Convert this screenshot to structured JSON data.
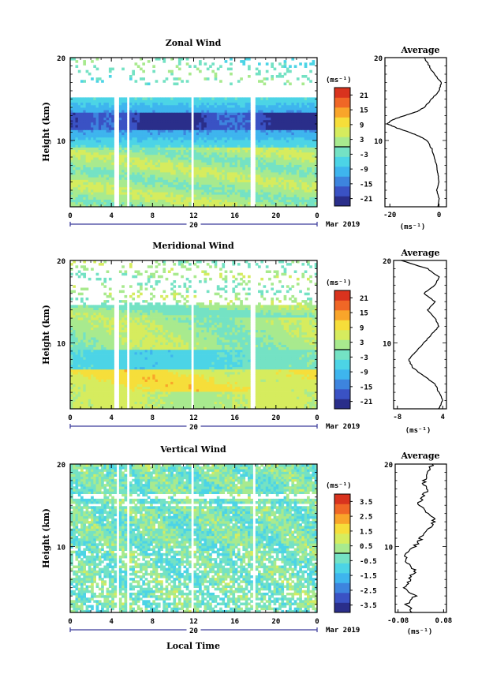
{
  "xaxis": {
    "label": "Local Time",
    "ticks": [
      "0",
      "4",
      "8",
      "12",
      "16",
      "20",
      "0"
    ],
    "date_tick": "20",
    "month_label": "Mar 2019"
  },
  "avg_title": "Average",
  "units": "(ms⁻¹)",
  "colors": [
    "#2a2e8a",
    "#3a52c4",
    "#3d84de",
    "#3eb5ee",
    "#4cd4e6",
    "#74e2c4",
    "#a8ea8e",
    "#d6ec5e",
    "#f6de3a",
    "#f9a52a",
    "#f06726",
    "#d9331e"
  ],
  "chart_data": [
    {
      "type": "heatmap",
      "title": "Zonal Wind",
      "ylabel": "Height (km)",
      "xlabel": "",
      "x_range_hours": [
        0,
        24
      ],
      "y_range_km": [
        2,
        20
      ],
      "y_ticks": [
        "20",
        "10"
      ],
      "colorbar_ticks": [
        "21",
        "15",
        "9",
        "3",
        "-3",
        "-9",
        "-15",
        "-21"
      ],
      "colorbar_range": [
        -24,
        24
      ],
      "zero_line": 0,
      "profile": {
        "x_ticks": [
          "-20",
          "0"
        ],
        "x_range": [
          -22,
          3
        ],
        "height_km": [
          2,
          3,
          4,
          5,
          6,
          7,
          8,
          9,
          10,
          10.5,
          11,
          11.5,
          12,
          12.5,
          13,
          13.5,
          14,
          15,
          16,
          17,
          18,
          19,
          20
        ],
        "value": [
          -0.5,
          0,
          -1,
          0,
          -0.5,
          -1,
          -2,
          -3,
          -5,
          -8,
          -12,
          -17,
          -21,
          -19,
          -14,
          -9,
          -6,
          -3,
          0,
          1,
          -2,
          -4,
          -6
        ]
      }
    },
    {
      "type": "heatmap",
      "title": "Meridional Wind",
      "ylabel": "Height (km)",
      "xlabel": "",
      "x_range_hours": [
        0,
        24
      ],
      "y_range_km": [
        2,
        20
      ],
      "y_ticks": [
        "20",
        "10"
      ],
      "colorbar_ticks": [
        "21",
        "15",
        "9",
        "3",
        "-3",
        "-9",
        "-15",
        "-21"
      ],
      "colorbar_range": [
        -24,
        24
      ],
      "zero_line": 0,
      "profile": {
        "x_ticks": [
          "-8",
          "4"
        ],
        "x_range": [
          -9,
          5
        ],
        "height_km": [
          2,
          3,
          4,
          5,
          6,
          7,
          8,
          9,
          10,
          11,
          12,
          13,
          14,
          15,
          16,
          17,
          18,
          19,
          20
        ],
        "value": [
          3,
          4,
          3,
          2,
          -1,
          -4,
          -5,
          -3,
          -1,
          1,
          3,
          2,
          0,
          2,
          -1,
          2,
          3,
          0,
          -7
        ]
      }
    },
    {
      "type": "heatmap",
      "title": "Vertical Wind",
      "ylabel": "Height (km)",
      "xlabel": "Local Time",
      "x_range_hours": [
        0,
        24
      ],
      "y_range_km": [
        2,
        20
      ],
      "y_ticks": [
        "20",
        "10"
      ],
      "colorbar_ticks": [
        "3.5",
        "2.5",
        "1.5",
        "0.5",
        "-0.5",
        "-1.5",
        "-2.5",
        "-3.5"
      ],
      "colorbar_range": [
        -4,
        4
      ],
      "zero_line": 0,
      "profile": {
        "x_ticks": [
          "-0.08",
          "0.08"
        ],
        "x_range": [
          -0.09,
          0.09
        ],
        "height_km": [
          2,
          3,
          4,
          5,
          6,
          7,
          8,
          9,
          10,
          11,
          12,
          13,
          14,
          15,
          16,
          17,
          18,
          19,
          20
        ],
        "value": [
          -0.03,
          -0.05,
          -0.02,
          -0.06,
          -0.04,
          -0.02,
          -0.05,
          -0.06,
          -0.02,
          0.0,
          0.02,
          0.05,
          0.03,
          -0.01,
          0.01,
          0.02,
          0.01,
          0.03,
          0.04
        ]
      }
    }
  ]
}
